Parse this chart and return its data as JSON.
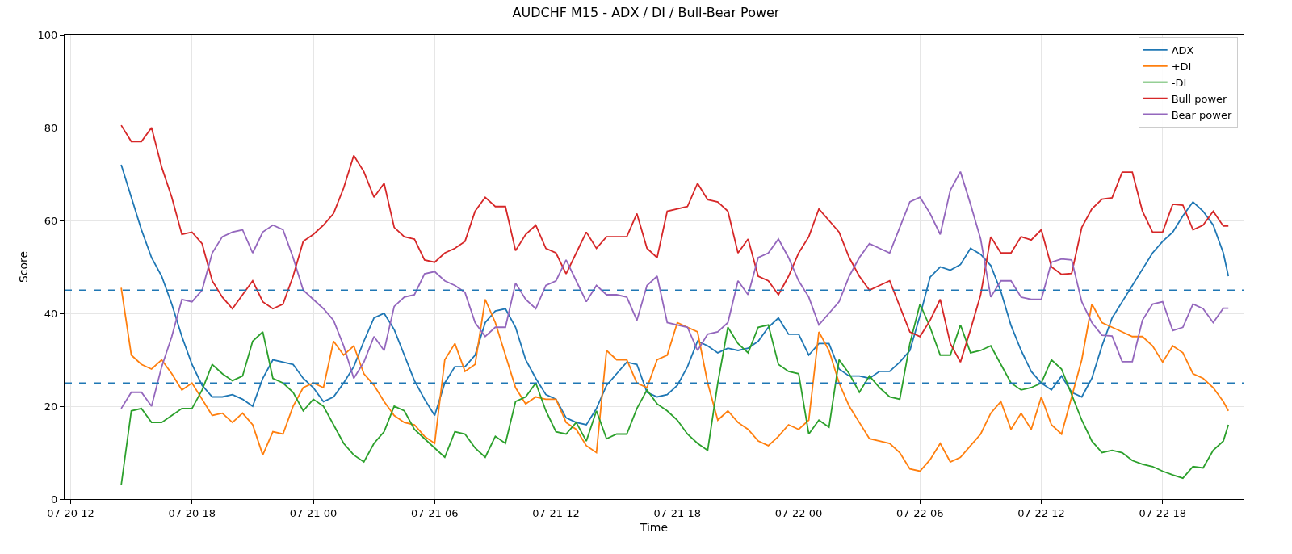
{
  "chart_data": {
    "type": "line",
    "title": "AUDCHF M15 - ADX / DI / Bull-Bear Power",
    "xlabel": "Time",
    "ylabel": "Score",
    "x": [
      "--07-20T14:30",
      "--07-20T15:00",
      "--07-20T15:30",
      "--07-20T16:00",
      "--07-20T16:30",
      "--07-20T17:00",
      "--07-20T17:30",
      "--07-20T18:00",
      "--07-20T18:30",
      "--07-20T19:00",
      "--07-20T19:30",
      "--07-20T20:00",
      "--07-20T20:30",
      "--07-20T21:00",
      "--07-20T21:30",
      "--07-20T22:00",
      "--07-20T22:30",
      "--07-20T23:00",
      "--07-20T23:30",
      "--07-21T00:00",
      "--07-21T00:30",
      "--07-21T01:00",
      "--07-21T01:30",
      "--07-21T02:00",
      "--07-21T02:30",
      "--07-21T03:00",
      "--07-21T03:30",
      "--07-21T04:00",
      "--07-21T04:30",
      "--07-21T05:00",
      "--07-21T05:30",
      "--07-21T06:00",
      "--07-21T06:30",
      "--07-21T07:00",
      "--07-21T07:30",
      "--07-21T08:00",
      "--07-21T08:30",
      "--07-21T09:00",
      "--07-21T09:30",
      "--07-21T10:00",
      "--07-21T10:30",
      "--07-21T11:00",
      "--07-21T11:30",
      "--07-21T12:00",
      "--07-21T12:30",
      "--07-21T13:00",
      "--07-21T13:30",
      "--07-21T14:00",
      "--07-21T14:30",
      "--07-21T15:00",
      "--07-21T15:30",
      "--07-21T16:00",
      "--07-21T16:30",
      "--07-21T17:00",
      "--07-21T17:30",
      "--07-21T18:00",
      "--07-21T18:30",
      "--07-21T19:00",
      "--07-21T19:30",
      "--07-21T20:00",
      "--07-21T20:30",
      "--07-21T21:00",
      "--07-21T21:30",
      "--07-21T22:00",
      "--07-21T22:30",
      "--07-21T23:00",
      "--07-21T23:30",
      "--07-22T00:00",
      "--07-22T00:30",
      "--07-22T01:00",
      "--07-22T01:30",
      "--07-22T02:00",
      "--07-22T02:30",
      "--07-22T03:00",
      "--07-22T03:30",
      "--07-22T04:00",
      "--07-22T04:30",
      "--07-22T05:00",
      "--07-22T05:30",
      "--07-22T06:00",
      "--07-22T06:30",
      "--07-22T07:00",
      "--07-22T07:30",
      "--07-22T08:00",
      "--07-22T08:30",
      "--07-22T09:00",
      "--07-22T09:30",
      "--07-22T10:00",
      "--07-22T10:30",
      "--07-22T11:00",
      "--07-22T11:30",
      "--07-22T12:00",
      "--07-22T12:30",
      "--07-22T13:00",
      "--07-22T13:30",
      "--07-22T14:00",
      "--07-22T14:30",
      "--07-22T15:00",
      "--07-22T15:30",
      "--07-22T16:00",
      "--07-22T16:30",
      "--07-22T17:00",
      "--07-22T17:30",
      "--07-22T18:00",
      "--07-22T18:30",
      "--07-22T19:00",
      "--07-22T19:30",
      "--07-22T20:00",
      "--07-22T20:30",
      "--07-22T21:00",
      "--07-22T21:15"
    ],
    "series": [
      {
        "name": "ADX",
        "color": "#1f77b4",
        "values": [
          72,
          65,
          58,
          52,
          48,
          42,
          35,
          29,
          24.5,
          22,
          22,
          22.5,
          21.5,
          20,
          26,
          30,
          29.5,
          29,
          26,
          24,
          21,
          22,
          25,
          28.5,
          34,
          39,
          40,
          36.5,
          31,
          25.5,
          21.5,
          18,
          25,
          28.5,
          28.5,
          31,
          38,
          40.5,
          41,
          37,
          30,
          26,
          22.5,
          21.5,
          17.5,
          16.5,
          16,
          19.5,
          24.5,
          27,
          29.5,
          29,
          23,
          22,
          22.5,
          24.5,
          28.5,
          34,
          33,
          31.5,
          32.5,
          32,
          32.5,
          34,
          37,
          39,
          35.5,
          35.5,
          31,
          33.5,
          33.5,
          28,
          26.5,
          26.5,
          26,
          27.5,
          27.5,
          29.5,
          32,
          39.5,
          47.8,
          50,
          49.3,
          50.5,
          54,
          52.7,
          50.3,
          44.7,
          37.4,
          32,
          27.5,
          25,
          23.5,
          26.5,
          23,
          22,
          26,
          33,
          39,
          42.5,
          46,
          49.5,
          53,
          55.5,
          57.5,
          61,
          64,
          62,
          59,
          53,
          48
        ]
      },
      {
        "name": "+DI",
        "color": "#ff7f0e",
        "values": [
          45.5,
          31,
          29,
          28,
          30,
          27,
          23.5,
          25,
          21.5,
          18,
          18.5,
          16.5,
          18.5,
          16,
          9.5,
          14.5,
          14,
          20,
          24,
          25,
          24,
          34,
          31,
          33,
          27,
          24.5,
          21,
          18,
          16.5,
          16,
          13.5,
          12,
          30,
          33.5,
          27.5,
          29,
          43,
          38,
          31,
          24,
          20.5,
          22,
          21.5,
          21.5,
          16.5,
          15,
          11.5,
          10,
          32,
          30,
          30,
          25,
          24,
          30,
          31,
          38,
          37,
          36,
          25,
          17,
          19,
          16.5,
          15,
          12.5,
          11.5,
          13.5,
          16,
          15,
          17,
          36,
          32,
          25,
          20,
          16.5,
          13,
          12.5,
          12,
          10,
          6.5,
          6,
          8.5,
          12,
          8,
          9,
          11.5,
          14,
          18.5,
          21,
          15,
          18.5,
          15,
          22,
          16,
          14,
          22,
          30,
          42,
          38,
          37,
          36,
          35,
          35,
          33,
          29.5,
          33,
          31.5,
          27,
          26,
          24,
          21,
          19
        ]
      },
      {
        "name": "-DI",
        "color": "#2ca02c",
        "values": [
          3,
          19,
          19.5,
          16.5,
          16.5,
          18,
          19.5,
          19.5,
          23.5,
          29,
          27,
          25.5,
          26.5,
          34,
          36,
          26,
          25,
          23,
          19,
          21.5,
          20,
          16,
          12,
          9.5,
          8,
          12,
          14.5,
          20,
          19,
          15,
          13,
          11,
          9,
          14.5,
          14,
          11,
          9,
          13.5,
          12,
          21,
          22,
          25,
          19,
          14.5,
          14,
          16.5,
          12.5,
          19,
          13,
          14,
          14,
          19.5,
          23.5,
          20.5,
          19,
          17,
          14,
          12,
          10.5,
          25,
          37,
          33.5,
          31.5,
          37,
          37.5,
          29,
          27.5,
          27,
          14,
          17,
          15.5,
          30,
          27,
          23,
          26.5,
          24,
          22,
          21.5,
          33.5,
          42,
          37,
          31,
          31,
          37.5,
          31.5,
          32,
          33,
          29,
          25,
          23.5,
          24,
          25,
          30,
          28,
          22.5,
          17,
          12.5,
          10,
          10.5,
          10,
          8.3,
          7.5,
          7,
          6,
          5.2,
          4.5,
          7,
          6.7,
          10.5,
          12.5,
          16
        ]
      },
      {
        "name": "Bull power",
        "color": "#d62728",
        "values": [
          80.5,
          77,
          77,
          80,
          71.5,
          65,
          57,
          57.5,
          55,
          47,
          43.5,
          41,
          44,
          47,
          42.5,
          41,
          42,
          48,
          55.5,
          57,
          59,
          61.5,
          67,
          74,
          70.5,
          65,
          68,
          58.5,
          56.5,
          56,
          51.5,
          51,
          53,
          54,
          55.5,
          62,
          65,
          63,
          63,
          53.5,
          57,
          59,
          54,
          53,
          48.5,
          53,
          57.5,
          54,
          56.5,
          56.5,
          56.5,
          61.5,
          54,
          52,
          62,
          62.5,
          63,
          68,
          64.5,
          64,
          62,
          53,
          56,
          48,
          47,
          44,
          48,
          53,
          56.5,
          62.5,
          60,
          57.5,
          52,
          48,
          45,
          46,
          47,
          41.5,
          36,
          35,
          38.5,
          43,
          33.5,
          29.5,
          36.5,
          44,
          56.5,
          53,
          53,
          56.5,
          55.8,
          58,
          50,
          48.4,
          48.6,
          58.5,
          62.5,
          64.6,
          64.9,
          70.4,
          70.4,
          62,
          57.5,
          57.5,
          63.5,
          63.3,
          58,
          59,
          62,
          58.8,
          58.8
        ]
      },
      {
        "name": "Bear power",
        "color": "#9467bd",
        "values": [
          19.5,
          23,
          23,
          20,
          28.5,
          35,
          43,
          42.5,
          45,
          53,
          56.5,
          57.5,
          58,
          53,
          57.5,
          59,
          58,
          52,
          45,
          43,
          41,
          38.5,
          33,
          26,
          29.5,
          35,
          32,
          41.5,
          43.5,
          44,
          48.5,
          49,
          47,
          46,
          44.5,
          38,
          35,
          37,
          37,
          46.5,
          43,
          41,
          46,
          47,
          51.5,
          47,
          42.5,
          46,
          44,
          44,
          43.5,
          38.5,
          46,
          48,
          38,
          37.5,
          37,
          32,
          35.5,
          36,
          38,
          47,
          44,
          52,
          53,
          56,
          52,
          47,
          43.5,
          37.5,
          40,
          42.5,
          48,
          52,
          55,
          54,
          53,
          58.5,
          64,
          65,
          61.5,
          57,
          66.5,
          70.5,
          63.5,
          56,
          43.5,
          47,
          47,
          43.5,
          43,
          43,
          51,
          51.7,
          51.5,
          42.5,
          38,
          35.3,
          35.1,
          29.6,
          29.6,
          38.5,
          42,
          42.5,
          36.3,
          37,
          42,
          41,
          38,
          41.1,
          41.1
        ]
      }
    ],
    "xlim": [
      "--07-20T11:42",
      "--07-22T22:00"
    ],
    "xticks": [
      {
        "value": "--07-20T12:00",
        "label": "07-20 12"
      },
      {
        "value": "--07-20T18:00",
        "label": "07-20 18"
      },
      {
        "value": "--07-21T00:00",
        "label": "07-21 00"
      },
      {
        "value": "--07-21T06:00",
        "label": "07-21 06"
      },
      {
        "value": "--07-21T12:00",
        "label": "07-21 12"
      },
      {
        "value": "--07-21T18:00",
        "label": "07-21 18"
      },
      {
        "value": "--07-22T00:00",
        "label": "07-22 00"
      },
      {
        "value": "--07-22T06:00",
        "label": "07-22 06"
      },
      {
        "value": "--07-22T12:00",
        "label": "07-22 12"
      },
      {
        "value": "--07-22T18:00",
        "label": "07-22 18"
      }
    ],
    "ylim": [
      0,
      100
    ],
    "yticks": [
      0,
      20,
      40,
      60,
      80,
      100
    ],
    "ref_lines": [
      {
        "axis": "y",
        "value": 45,
        "color": "#1f77b4",
        "line_style": "dashed"
      },
      {
        "axis": "y",
        "value": 25,
        "color": "#1f77b4",
        "line_style": "dashed"
      }
    ],
    "grid": true,
    "legend": "top right"
  }
}
